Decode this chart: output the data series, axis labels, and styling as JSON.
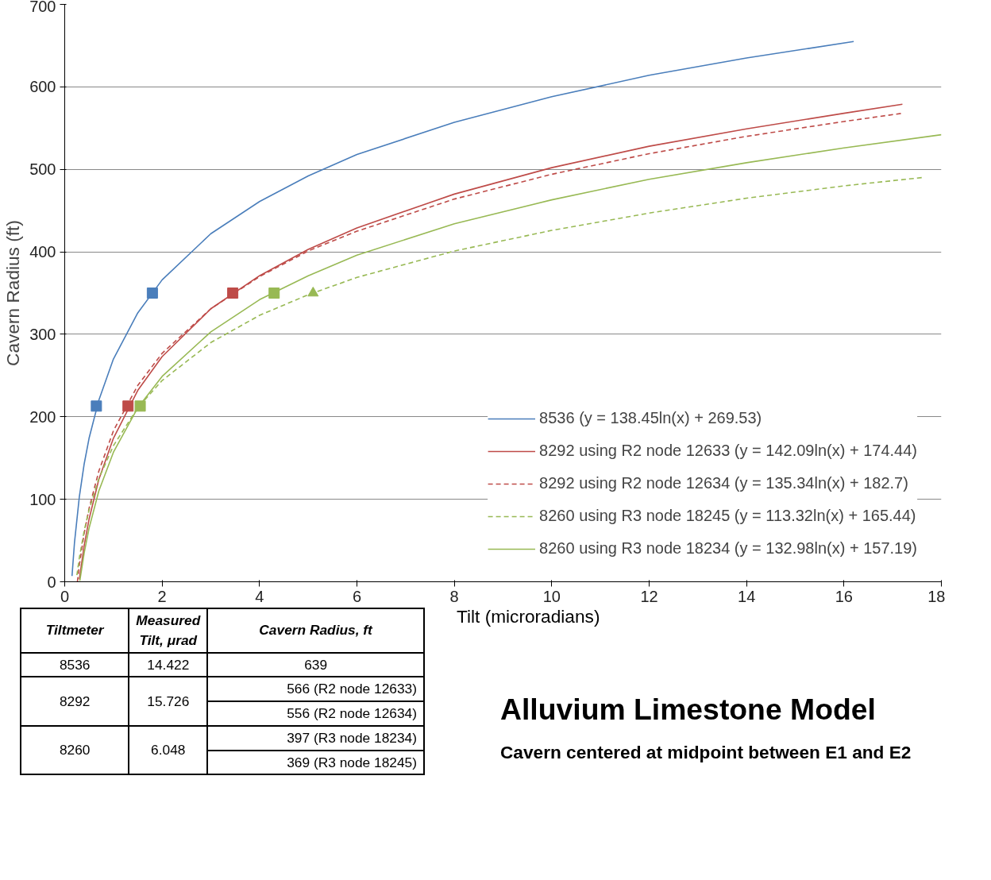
{
  "chart_data": {
    "type": "line",
    "title": "Alluvium Limestone Model",
    "subtitle": "Cavern centered at midpoint between E1 and E2",
    "xlabel": "Tilt (microradians)",
    "ylabel": "Cavern Radius (ft)",
    "xlim": [
      0,
      18
    ],
    "xticks": [
      0,
      2,
      4,
      6,
      8,
      10,
      12,
      14,
      16,
      18
    ],
    "ylim": [
      0,
      700
    ],
    "yticks": [
      0,
      100,
      200,
      300,
      400,
      500,
      600,
      700
    ],
    "grid": "y",
    "legend": "bottom right",
    "marker": "none",
    "series": [
      {
        "name": "8536 (y = 138.45ln(x) + 269.53)",
        "color": "#4a7ebb",
        "line_style": "solid",
        "x": [
          0.15,
          0.2,
          0.3,
          0.4,
          0.5,
          0.7,
          1,
          1.5,
          2,
          3,
          4,
          5,
          6,
          8,
          10,
          12,
          14,
          16.2
        ],
        "values": [
          7,
          47,
          103,
          143,
          174,
          220,
          270,
          326,
          366,
          422,
          461,
          492,
          518,
          557,
          588,
          614,
          635,
          655
        ]
      },
      {
        "name": "8292 using R2 node 12633 (y = 142.09ln(x) + 174.44)",
        "color": "#be4b48",
        "line_style": "solid",
        "x": [
          0.3,
          0.4,
          0.5,
          0.7,
          1,
          1.5,
          2,
          3,
          4,
          5,
          6,
          8,
          10,
          12,
          14,
          16,
          17.2
        ],
        "values": [
          3,
          44,
          76,
          124,
          174,
          232,
          273,
          331,
          371,
          403,
          429,
          470,
          502,
          528,
          549,
          568,
          579
        ]
      },
      {
        "name": "8292 using R2 node 12634 (y = 135.34ln(x) + 182.7)",
        "color": "#be4b48",
        "line_style": "dashed",
        "x": [
          0.26,
          0.3,
          0.4,
          0.5,
          0.7,
          1,
          1.5,
          2,
          3,
          4,
          5,
          6,
          8,
          10,
          12,
          14,
          16,
          17.2
        ],
        "values": [
          0,
          20,
          59,
          89,
          134,
          183,
          238,
          277,
          331,
          370,
          401,
          425,
          464,
          494,
          519,
          540,
          558,
          568
        ]
      },
      {
        "name": "8260 using R3 node 18245 (y = 113.32ln(x) + 165.44)",
        "color": "#98b954",
        "line_style": "dashed",
        "x": [
          0.25,
          0.3,
          0.4,
          0.5,
          0.7,
          1,
          1.5,
          2,
          3,
          4,
          5,
          6,
          8,
          10,
          12,
          14,
          16,
          17.6
        ],
        "values": [
          8,
          29,
          62,
          87,
          125,
          165,
          211,
          244,
          290,
          323,
          348,
          369,
          401,
          426,
          447,
          465,
          480,
          490
        ]
      },
      {
        "name": "8260 using R3 node 18234 (y = 132.98ln(x) + 157.19)",
        "color": "#98b954",
        "line_style": "solid",
        "x": [
          0.31,
          0.4,
          0.5,
          0.7,
          1,
          1.5,
          2,
          3,
          4,
          5,
          6,
          8,
          10,
          12,
          14,
          16,
          18
        ],
        "values": [
          1,
          35,
          65,
          110,
          157,
          211,
          249,
          303,
          342,
          371,
          396,
          434,
          463,
          488,
          508,
          526,
          542
        ]
      },
      {
        "type": "scatter",
        "marker": "square",
        "color": "#4a7ebb",
        "x": [
          0.65,
          1.8
        ],
        "values": [
          213,
          350
        ]
      },
      {
        "type": "scatter",
        "marker": "square",
        "color": "#be4b48",
        "x": [
          1.3,
          3.45
        ],
        "values": [
          213,
          350
        ]
      },
      {
        "type": "scatter",
        "marker": "square",
        "color": "#98b954",
        "x": [
          1.55,
          4.3
        ],
        "values": [
          213,
          350
        ]
      },
      {
        "type": "scatter",
        "marker": "triangle",
        "color": "#98b954",
        "x": [
          5.1
        ],
        "values": [
          350
        ]
      }
    ],
    "annotations": [
      "Tiltmeter",
      "Measured Tilt, μrad",
      "Cavern Radius, ft",
      "8536",
      "14.422",
      "639",
      "8292",
      "15.726",
      "566   (R2 node 12633)",
      "556   (R2 node 12634)",
      "8260",
      "6.048",
      "397   (R3 node 18234)",
      "369   (R3 node 18245)"
    ]
  }
}
